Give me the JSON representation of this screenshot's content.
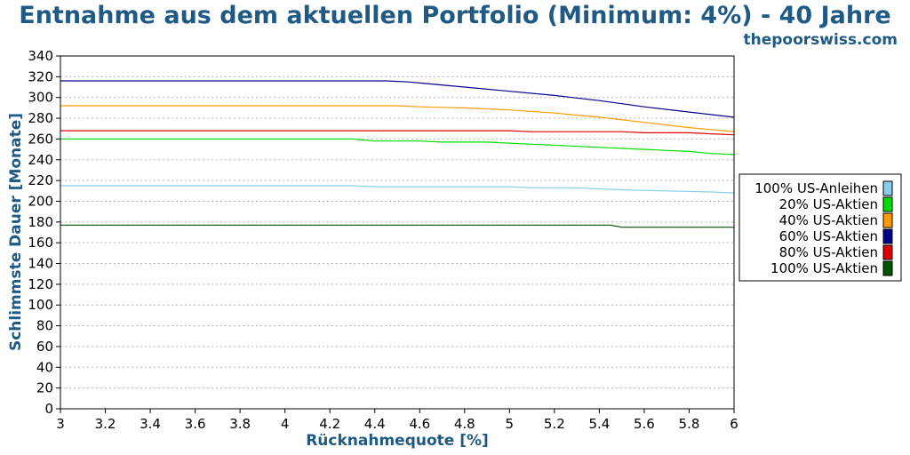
{
  "chart_data": {
    "type": "line",
    "title": "Entnahme aus dem aktuellen Portfolio (Minimum: 4%) - 40 Jahre",
    "credit": "thepoorswiss.com",
    "xlabel": "Rücknahmequote [%]",
    "ylabel": "Schlimmste Dauer [Monate]",
    "xlim": [
      3,
      6
    ],
    "ylim": [
      0,
      340
    ],
    "xticks": [
      "3",
      "3.2",
      "3.4",
      "3.6",
      "3.8",
      "4",
      "4.2",
      "4.4",
      "4.6",
      "4.8",
      "5",
      "5.2",
      "5.4",
      "5.6",
      "5.8",
      "6"
    ],
    "yticks": [
      "0",
      "20",
      "40",
      "60",
      "80",
      "100",
      "120",
      "140",
      "160",
      "180",
      "200",
      "220",
      "240",
      "260",
      "280",
      "300",
      "320",
      "340"
    ],
    "grid": true,
    "legend_position": "right",
    "series": [
      {
        "name": "100% US-Anleihen",
        "color": "#87ceeb",
        "points": [
          [
            3,
            215
          ],
          [
            4.3,
            215
          ],
          [
            4.4,
            214
          ],
          [
            5.0,
            214
          ],
          [
            5.1,
            213
          ],
          [
            5.3,
            213
          ],
          [
            5.4,
            212
          ],
          [
            5.5,
            211
          ],
          [
            5.7,
            210
          ],
          [
            5.9,
            209
          ],
          [
            6.0,
            208
          ]
        ]
      },
      {
        "name": "20% US-Aktien",
        "color": "#00dd00",
        "points": [
          [
            3,
            260
          ],
          [
            4.3,
            260
          ],
          [
            4.4,
            258
          ],
          [
            4.6,
            258
          ],
          [
            4.7,
            257
          ],
          [
            4.9,
            257
          ],
          [
            5.0,
            256
          ],
          [
            5.1,
            255
          ],
          [
            5.2,
            254
          ],
          [
            5.4,
            252
          ],
          [
            5.6,
            250
          ],
          [
            5.8,
            248
          ],
          [
            5.9,
            246
          ],
          [
            6.0,
            245
          ]
        ]
      },
      {
        "name": "40% US-Aktien",
        "color": "#ff9900",
        "points": [
          [
            3,
            292
          ],
          [
            4.5,
            292
          ],
          [
            4.6,
            291
          ],
          [
            4.8,
            290
          ],
          [
            5.0,
            288
          ],
          [
            5.2,
            285
          ],
          [
            5.4,
            281
          ],
          [
            5.6,
            276
          ],
          [
            5.8,
            271
          ],
          [
            6.0,
            267
          ]
        ]
      },
      {
        "name": "60% US-Aktien",
        "color": "#00008b",
        "points": [
          [
            3,
            316
          ],
          [
            4.45,
            316
          ],
          [
            4.55,
            315
          ],
          [
            4.65,
            313
          ],
          [
            4.8,
            310
          ],
          [
            5.0,
            306
          ],
          [
            5.2,
            302
          ],
          [
            5.4,
            297
          ],
          [
            5.6,
            291
          ],
          [
            5.8,
            286
          ],
          [
            6.0,
            281
          ]
        ]
      },
      {
        "name": "80% US-Aktien",
        "color": "#e00000",
        "points": [
          [
            3,
            268
          ],
          [
            5.0,
            268
          ],
          [
            5.1,
            267
          ],
          [
            5.5,
            267
          ],
          [
            5.6,
            266
          ],
          [
            5.8,
            266
          ],
          [
            5.9,
            265
          ],
          [
            6.0,
            264
          ]
        ]
      },
      {
        "name": "100% US-Aktien",
        "color": "#005500",
        "points": [
          [
            3,
            177
          ],
          [
            5.45,
            177
          ],
          [
            5.5,
            175
          ],
          [
            6.0,
            175
          ]
        ]
      }
    ]
  }
}
